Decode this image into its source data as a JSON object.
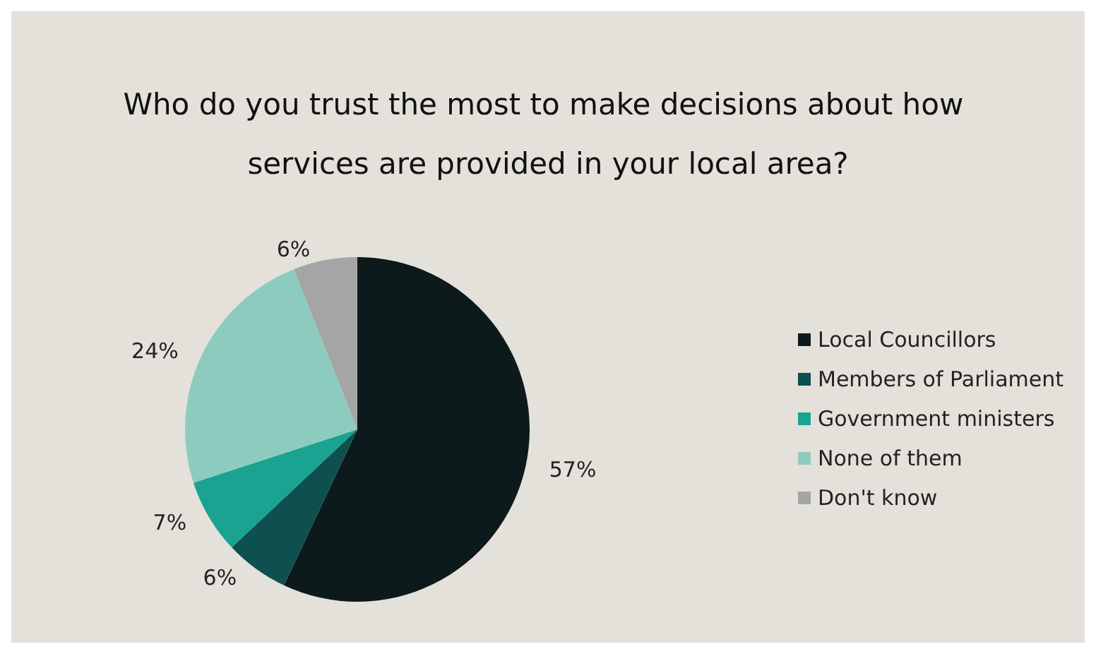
{
  "chart_data": {
    "type": "pie",
    "title": "Who do you trust the most to make decisions about how services are provided in your local area?",
    "categories": [
      "Local Councillors",
      "Members of Parliament",
      "Government ministers",
      "None of them",
      "Don't know"
    ],
    "values": [
      57,
      6,
      7,
      24,
      6
    ],
    "colors": [
      "#0d1a1c",
      "#0e4f4f",
      "#1aa391",
      "#8ecbbf",
      "#a5a5a5"
    ],
    "legend": "right",
    "value_labels": [
      "57%",
      "6%",
      "7%",
      "24%",
      "6%"
    ]
  }
}
